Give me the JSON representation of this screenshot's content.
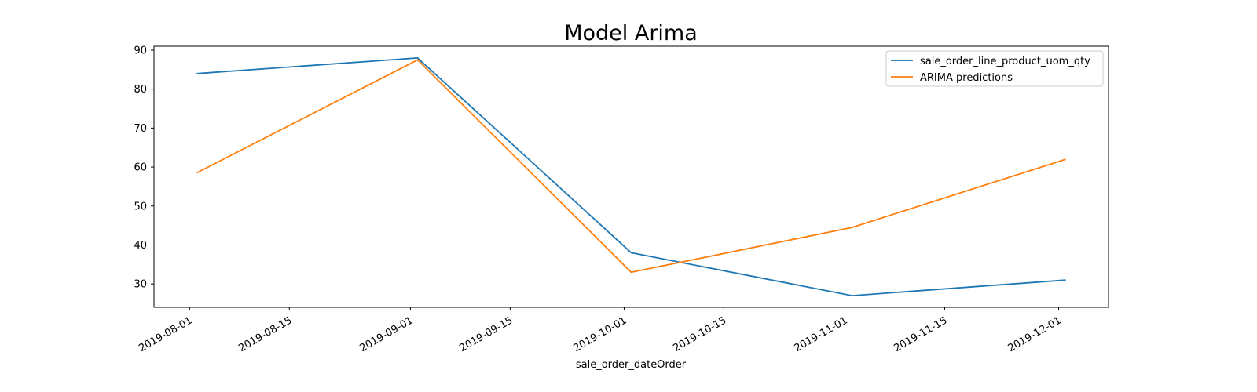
{
  "chart_data": {
    "type": "line",
    "title": "Model Arima",
    "xlabel": "sale_order_dateOrder",
    "ylabel": "",
    "x": [
      "2019-08-02",
      "2019-09-02",
      "2019-10-02",
      "2019-11-02",
      "2019-12-02"
    ],
    "series": [
      {
        "name": "sale_order_line_product_uom_qty",
        "color": "#1f77b4",
        "values": [
          84,
          88,
          38,
          27,
          31
        ]
      },
      {
        "name": "ARIMA predictions",
        "color": "#ff7f0e",
        "values": [
          58.5,
          87.5,
          33,
          44.5,
          62
        ]
      }
    ],
    "xlim": [
      "2019-07-27",
      "2019-12-08"
    ],
    "ylim": [
      24,
      91
    ],
    "xticks": [
      "2019-08-01",
      "2019-08-15",
      "2019-09-01",
      "2019-09-15",
      "2019-10-01",
      "2019-10-15",
      "2019-11-01",
      "2019-11-15",
      "2019-12-01"
    ],
    "yticks": [
      30,
      40,
      50,
      60,
      70,
      80,
      90
    ],
    "grid": false,
    "legend": "top-right"
  }
}
